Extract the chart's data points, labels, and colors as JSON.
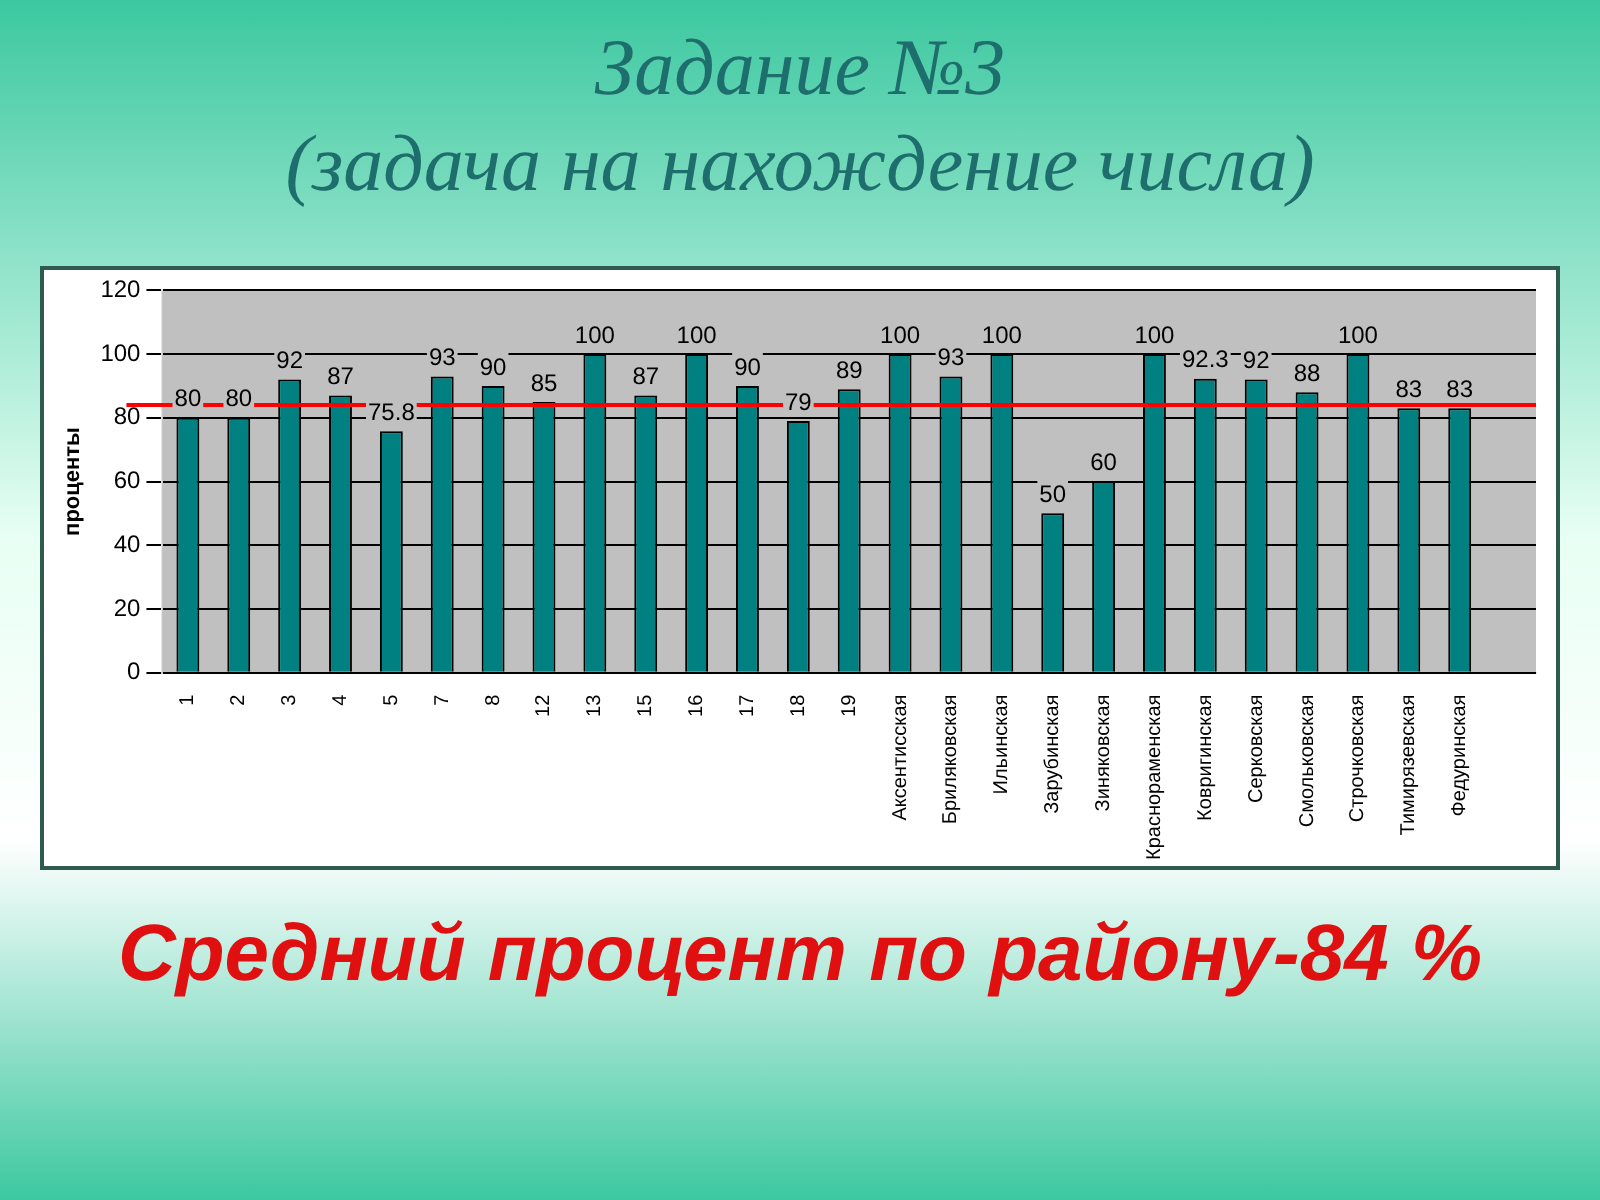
{
  "chart_data": {
    "type": "bar",
    "title": "Задание №3",
    "subtitle": "(задача на нахождение числа)",
    "ylabel": "проценты",
    "categories": [
      "1",
      "2",
      "3",
      "4",
      "5",
      "7",
      "8",
      "12",
      "13",
      "15",
      "16",
      "17",
      "18",
      "19",
      "Аксентисская",
      "Бриляковская",
      "Ильинская",
      "Зарубинская",
      "Зиняковская",
      "Краснораменская",
      "Ковригинская",
      "Серковская",
      "Смольковская",
      "Строчковская",
      "Тимирязевская",
      "Федуринская",
      null
    ],
    "values": [
      80,
      80,
      92,
      87,
      75.8,
      93,
      90,
      85,
      100,
      87,
      100,
      90,
      79,
      89,
      100,
      93,
      100,
      50,
      60,
      100,
      92.3,
      92,
      88,
      100,
      83,
      83,
      null
    ],
    "color": "#008080",
    "ylim": [
      0,
      120
    ],
    "yticks": [
      0,
      20,
      40,
      60,
      80,
      100,
      120
    ],
    "grid": "y",
    "legend": false,
    "data_labels": true,
    "ref_lines": [
      {
        "axis": "y",
        "value": 84,
        "color": "#ff0000"
      }
    ],
    "annotations": [
      "Средний процент по району-84 %"
    ]
  }
}
